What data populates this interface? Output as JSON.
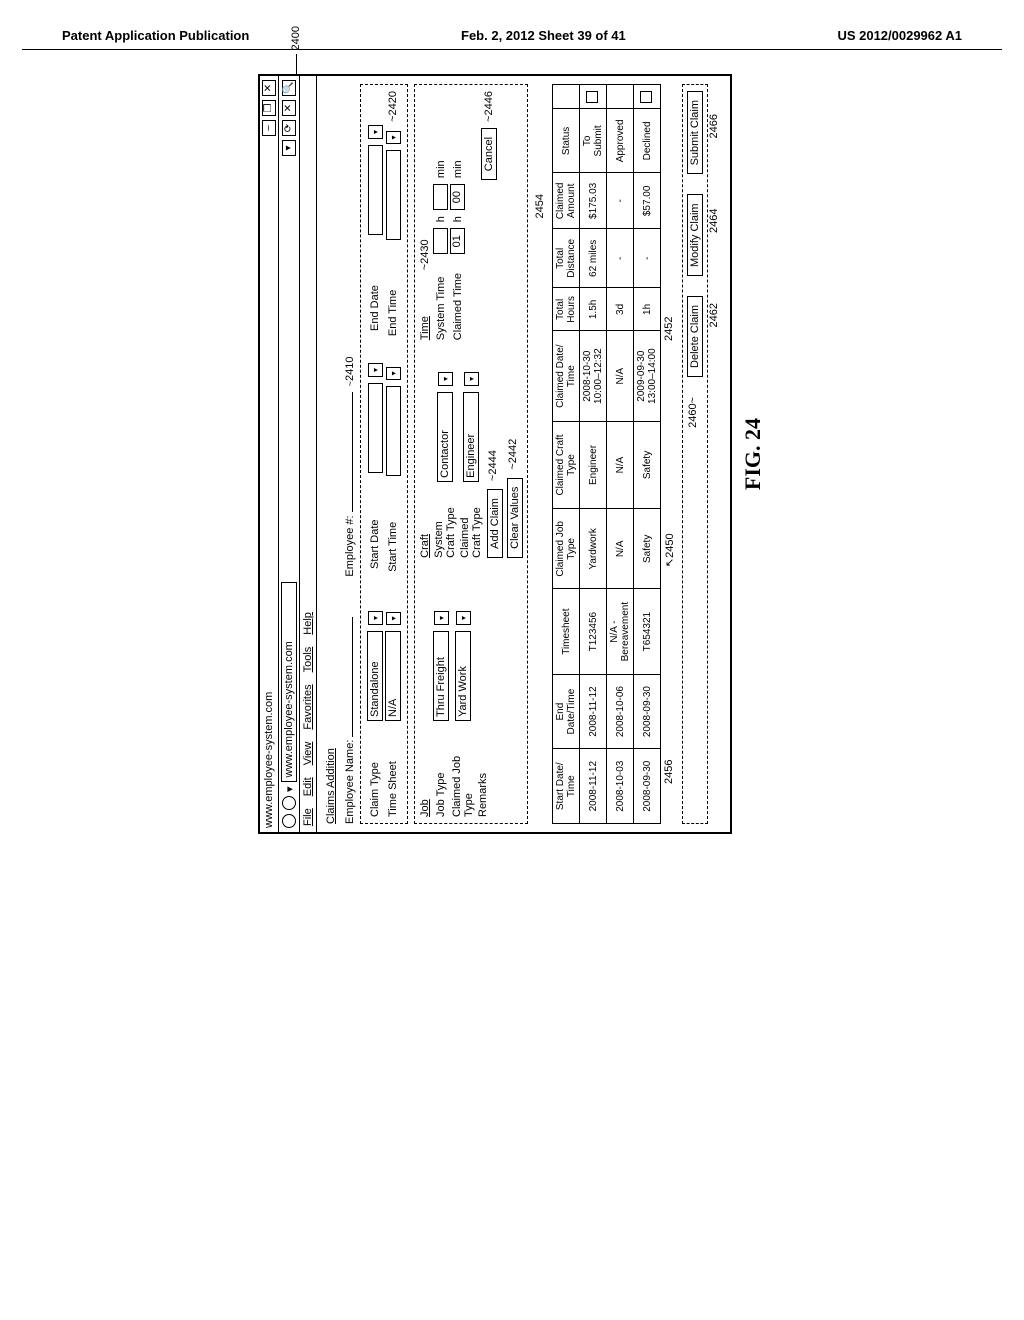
{
  "pub": {
    "left": "Patent Application Publication",
    "mid": "Feb. 2, 2012  Sheet 39 of 41",
    "right": "US 2012/0029962 A1"
  },
  "browser": {
    "title": "www.employee-system.com",
    "addr_prefix": "▾",
    "address": "www.employee-system.com",
    "go_icon": "⟳",
    "search_icon": "🔍",
    "min": "–",
    "max": "❐",
    "close": "✕",
    "close2": "✕"
  },
  "menu": {
    "file": "File",
    "edit": "Edit",
    "view": "View",
    "fav": "Favorites",
    "tools": "Tools",
    "help": "Help"
  },
  "section": {
    "claims_addition": "Claims Addition",
    "employee_name": "Employee Name:",
    "employee_num": "Employee #:"
  },
  "claim_entry": {
    "claim_type_label": "Claim Type",
    "claim_type_value": "Standalone",
    "time_sheet_label": "Time Sheet",
    "time_sheet_value": "N/A",
    "start_date_label": "Start Date",
    "start_time_label": "Start Time",
    "end_date_label": "End Date",
    "end_time_label": "End Time"
  },
  "job_group": {
    "title": "Job",
    "job_type_label": "Job Type",
    "job_type_value": "Thru Freight",
    "claimed_job_label": "Claimed Job\nType",
    "claimed_job_value": "Yard Work",
    "remarks_label": "Remarks"
  },
  "craft_group": {
    "title": "Craft",
    "sys_label": "System\nCraft Type",
    "sys_value": "Contactor",
    "claimed_label": "Claimed\nCraft Type",
    "claimed_value": "Engineer"
  },
  "time_group": {
    "title": "Time",
    "sys_label": "System Time",
    "claimed_label": "Claimed Time",
    "h": "h",
    "min": "min",
    "claimed_h": "01",
    "claimed_m": "00"
  },
  "btns": {
    "add": "Add Claim",
    "clear": "Clear Values",
    "cancel": "Cancel",
    "delete": "Delete Claim",
    "modify": "Modify Claim",
    "submit": "Submit Claim"
  },
  "table": {
    "headers": {
      "start": "Start Date/\nTime",
      "end": "End\nDate/Time",
      "timesheet": "Timesheet",
      "cjob": "Claimed Job\nType",
      "ccraft": "Claimed Craft\nType",
      "cdate": "Claimed Date/\nTime",
      "thours": "Total\nHours",
      "tdist": "Total\nDistance",
      "camount": "Claimed\nAmount",
      "status": "Status"
    },
    "rows": [
      {
        "start": "2008-11-12",
        "end": "2008-11-12",
        "ts": "T123456",
        "cjob": "Yardwork",
        "ccraft": "Engineer",
        "cdate": "2008-10-30\n10:00–12:32",
        "th": "1.5h",
        "td": "62 miles",
        "ca": "$175.03",
        "status": "To\nSubmit",
        "box": true
      },
      {
        "start": "2008-10-03",
        "end": "2008-10-06",
        "ts": "N/A -\nBereavement",
        "cjob": "N/A",
        "ccraft": "N/A",
        "cdate": "N/A",
        "th": "3d",
        "td": "-",
        "ca": "-",
        "status": "Approved",
        "box": false
      },
      {
        "start": "2008-09-30",
        "end": "2008-09-30",
        "ts": "T654321",
        "cjob": "Safety",
        "ccraft": "Safety",
        "cdate": "2009-09-30\n13:00–14:00",
        "th": "1h",
        "td": "-",
        "ca": "$57.00",
        "status": "Declined",
        "box": true
      }
    ]
  },
  "callouts": {
    "c2400": "2400",
    "c2410": "2410",
    "c2420": "2420",
    "c2430": "2430",
    "c2442": "2442",
    "c2444": "2444",
    "c2446": "2446",
    "c2450": "2450",
    "c2452": "2452",
    "c2454": "2454",
    "c2456": "2456",
    "c2460": "2460",
    "c2462": "2462",
    "c2464": "2464",
    "c2466": "2466"
  },
  "fig": "FIG. 24"
}
